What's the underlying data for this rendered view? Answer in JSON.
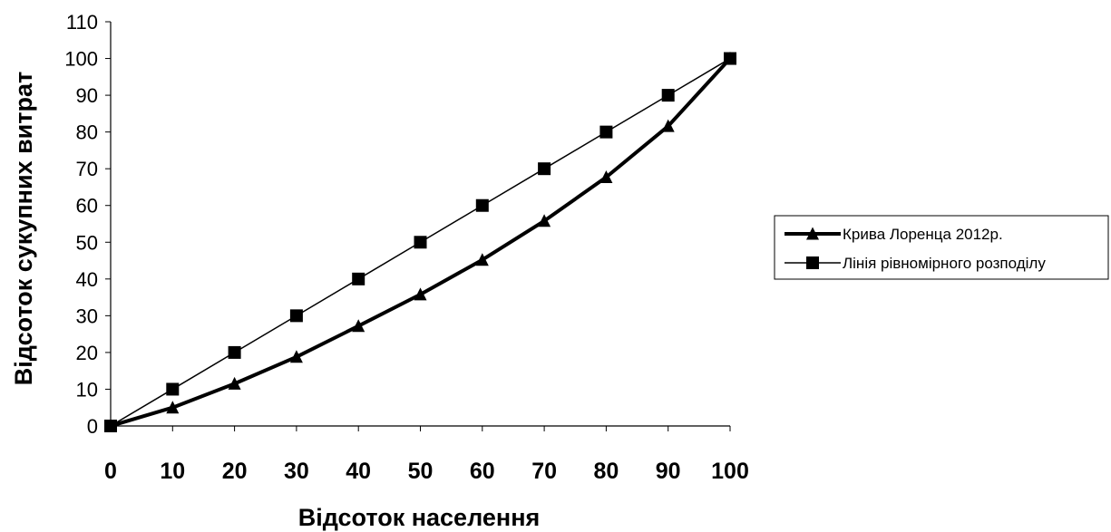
{
  "chart_data": {
    "type": "line",
    "xlabel": "Відсоток населення",
    "ylabel": "Відсоток сукупних витрат",
    "xlim": [
      0,
      100
    ],
    "ylim": [
      0,
      110
    ],
    "x_ticks": [
      "0",
      "10",
      "20",
      "30",
      "40",
      "50",
      "60",
      "70",
      "80",
      "90",
      "100"
    ],
    "y_ticks": [
      "0",
      "10",
      "20",
      "30",
      "40",
      "50",
      "60",
      "70",
      "80",
      "90",
      "100",
      "110"
    ],
    "grid": false,
    "legend_position": "right",
    "x": [
      0,
      10,
      20,
      30,
      40,
      50,
      60,
      70,
      80,
      90,
      100
    ],
    "series": [
      {
        "name": "Крива Лоренца 2012р.",
        "marker": "triangle",
        "line_weight": "thick",
        "color": "#000000",
        "values": [
          0,
          5,
          11.5,
          18.8,
          27.2,
          35.8,
          45.2,
          55.8,
          67.7,
          81.6,
          100
        ]
      },
      {
        "name": "Лінія рівномірного розподілу",
        "marker": "square",
        "line_weight": "thin",
        "color": "#000000",
        "values": [
          0,
          10,
          20,
          30,
          40,
          50,
          60,
          70,
          80,
          90,
          100
        ]
      }
    ]
  }
}
